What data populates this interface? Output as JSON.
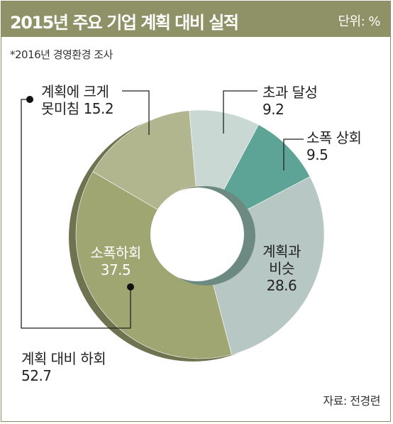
{
  "header": {
    "title": "2015년 주요 기업 계획 대비 실적",
    "unit": "단위: %"
  },
  "note": "*2016년 경영환경 조사",
  "source": "자료: 전경련",
  "colors": {
    "header_bg": "#8e9266",
    "greatly_below": "#b2b68f",
    "below": "#9fa672",
    "similar": "#b7c7c3",
    "slightly_above": "#5ea496",
    "greatly_above": "#c9d8d3"
  },
  "chart_data": {
    "type": "pie",
    "style": "donut",
    "title": "2015년 주요 기업 계획 대비 실적",
    "unit": "%",
    "slices": [
      {
        "label_line1": "초과",
        "label_line2": "달성",
        "label": "초과 달성",
        "value": 9.2,
        "color": "#c9d8d3"
      },
      {
        "label_line1": "소폭",
        "label_line2": "상회",
        "label": "소폭 상회",
        "value": 9.5,
        "color": "#5ea496"
      },
      {
        "label_line1": "계획과",
        "label_line2": "비슷",
        "label": "계획과 비슷",
        "value": 28.6,
        "color": "#b7c7c3"
      },
      {
        "label_line1": "소폭하회",
        "label_line2": "",
        "label": "소폭하회",
        "value": 37.5,
        "color": "#9fa672"
      },
      {
        "label_line1": "계획에 크게",
        "label_line2": "못미침",
        "label": "계획에 크게 못미침",
        "value": 15.2,
        "color": "#b2b68f"
      }
    ],
    "group": {
      "label": "계획 대비 하회",
      "value": 52.7,
      "members": [
        "소폭하회",
        "계획에 크게 못미침"
      ]
    }
  },
  "labels": {
    "exceed": {
      "line1": "초과  달성",
      "value": "9.2"
    },
    "slight_above": {
      "line1": "소폭  상회",
      "value": "9.5"
    },
    "similar": {
      "line1": "계획과",
      "line2": "비슷",
      "value": "28.6"
    },
    "slight_below": {
      "line1": "소폭하회",
      "value": "37.5"
    },
    "greatly_below": {
      "line1": "계획에  크게",
      "line2": "못미침",
      "value": "15.2"
    },
    "group": {
      "line1": "계획  대비  하회",
      "value": "52.7"
    }
  }
}
